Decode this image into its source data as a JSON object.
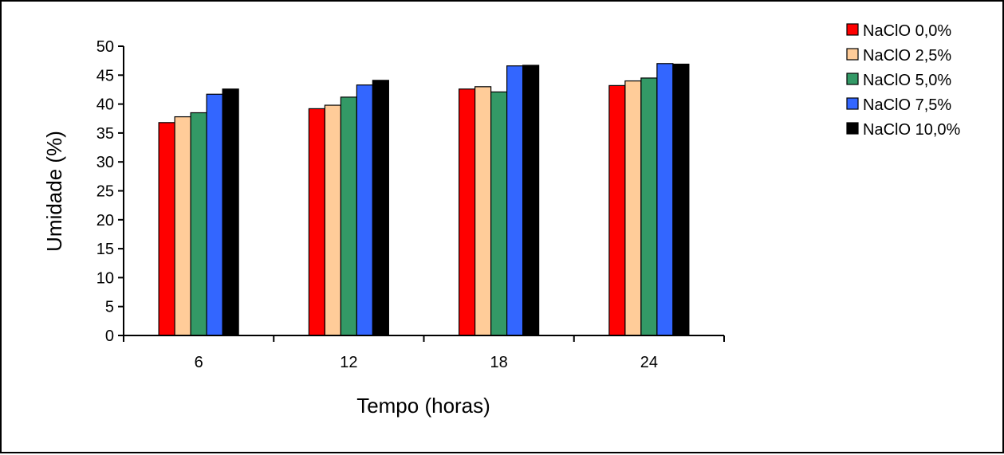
{
  "chart_data": {
    "type": "bar",
    "categories": [
      "6",
      "12",
      "18",
      "24"
    ],
    "series": [
      {
        "name": "NaClO 0,0%",
        "color": "#ff0000",
        "values": [
          36.8,
          39.2,
          42.6,
          43.2
        ]
      },
      {
        "name": "NaClO 2,5%",
        "color": "#ffcc99",
        "values": [
          37.8,
          39.8,
          43.0,
          44.0
        ]
      },
      {
        "name": "NaClO 5,0%",
        "color": "#339966",
        "values": [
          38.5,
          41.2,
          42.1,
          44.5
        ]
      },
      {
        "name": "NaClO 7,5%",
        "color": "#3366ff",
        "values": [
          41.7,
          43.3,
          46.6,
          47.0
        ]
      },
      {
        "name": "NaClO 10,0%",
        "color": "#000000",
        "values": [
          42.6,
          44.1,
          46.7,
          46.9
        ]
      }
    ],
    "xlabel": "Tempo (horas)",
    "ylabel": "Umidade (%)",
    "ylim": [
      0,
      50
    ],
    "yticks": [
      "0",
      "5",
      "10",
      "15",
      "20",
      "25",
      "30",
      "35",
      "40",
      "45",
      "50"
    ],
    "grid": false,
    "legend_position": "right"
  }
}
